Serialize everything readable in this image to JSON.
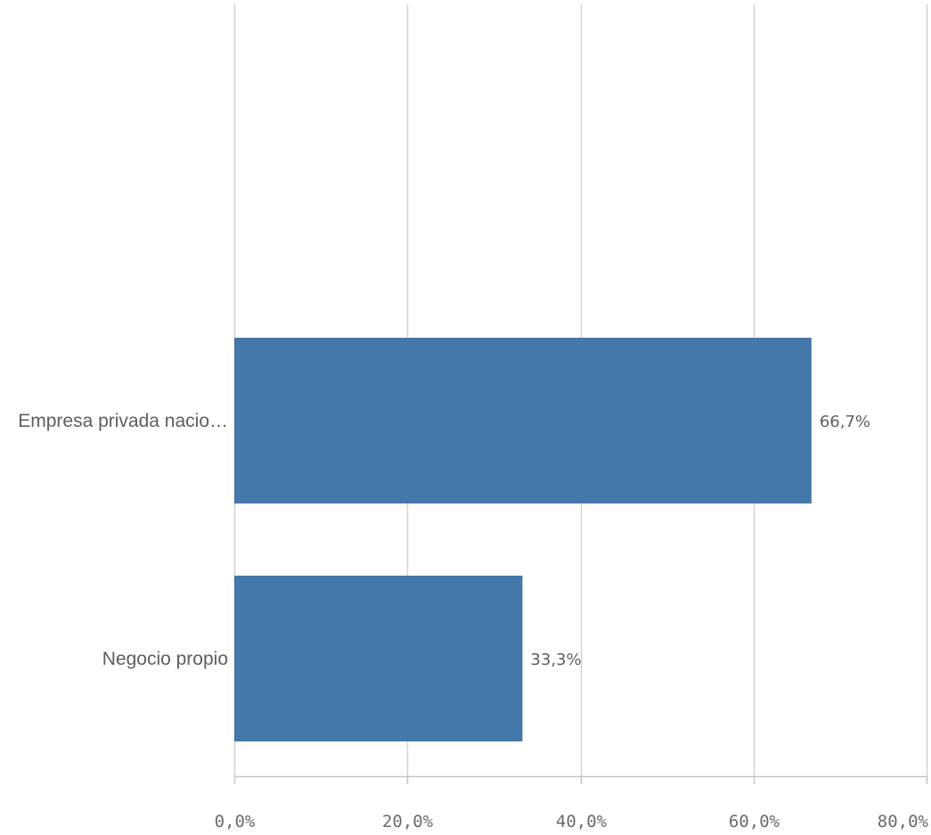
{
  "chart_data": {
    "type": "bar",
    "orientation": "horizontal",
    "categories": [
      "Empresa privada nacio…",
      "Negocio propio"
    ],
    "values": [
      66.7,
      33.3
    ],
    "value_labels": [
      "66,7%",
      "33,3%"
    ],
    "xlim": [
      0,
      80
    ],
    "x_ticks": [
      0,
      20,
      40,
      60,
      80
    ],
    "x_tick_labels": [
      "0,0%",
      "20,0%",
      "40,0%",
      "60,0%",
      "80,0%"
    ],
    "grid": "vertical",
    "legend": "none",
    "colors": {
      "bar": "#4477aa",
      "grid": "#d2d2d2",
      "axis": "#c4c4c4",
      "text": "#5e5e5e"
    }
  }
}
